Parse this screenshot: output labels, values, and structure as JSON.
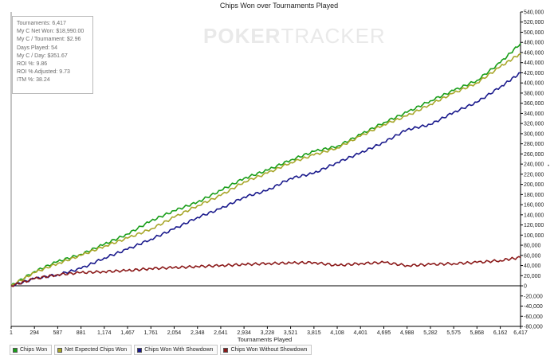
{
  "chart_data": {
    "type": "line",
    "title": "Chips Won over Tournaments Played",
    "xlabel": "Tournaments Played",
    "ylabel": "",
    "xlim": [
      1,
      6417
    ],
    "ylim": [
      -80000,
      540000
    ],
    "x_ticks": [
      "1",
      "294",
      "587",
      "881",
      "1,174",
      "1,467",
      "1,761",
      "2,054",
      "2,348",
      "2,641",
      "2,934",
      "3,228",
      "3,521",
      "3,815",
      "4,108",
      "4,401",
      "4,695",
      "4,988",
      "5,282",
      "5,575",
      "5,868",
      "6,162",
      "6,417"
    ],
    "y_ticks": [
      "540,000",
      "520,000",
      "500,000",
      "480,000",
      "460,000",
      "440,000",
      "420,000",
      "400,000",
      "380,000",
      "360,000",
      "340,000",
      "320,000",
      "300,000",
      "280,000",
      "260,000",
      "240,000",
      "220,000",
      "200,000",
      "180,000",
      "160,000",
      "140,000",
      "120,000",
      "100,000",
      "80,000",
      "60,000",
      "40,000",
      "20,000",
      "0",
      "-20,000",
      "-40,000",
      "-60,000",
      "-80,000"
    ],
    "legend_position": "bottom",
    "grid": false,
    "series": [
      {
        "name": "Chips Won",
        "color": "#1a9e1a",
        "x": [
          1,
          294,
          587,
          881,
          1174,
          1467,
          1761,
          2054,
          2348,
          2641,
          2934,
          3228,
          3521,
          3815,
          4108,
          4401,
          4695,
          4988,
          5282,
          5575,
          5868,
          6162,
          6417
        ],
        "y": [
          0,
          28000,
          48000,
          62000,
          82000,
          102000,
          128000,
          148000,
          165000,
          188000,
          212000,
          228000,
          248000,
          265000,
          275000,
          298000,
          322000,
          342000,
          365000,
          385000,
          405000,
          440000,
          478000
        ]
      },
      {
        "name": "Net Expected Chips Won",
        "color": "#a8a62a",
        "x": [
          1,
          294,
          587,
          881,
          1174,
          1467,
          1761,
          2054,
          2348,
          2641,
          2934,
          3228,
          3521,
          3815,
          4108,
          4401,
          4695,
          4988,
          5282,
          5575,
          5868,
          6162,
          6417
        ],
        "y": [
          0,
          26000,
          44000,
          60000,
          78000,
          94000,
          112000,
          135000,
          158000,
          178000,
          205000,
          222000,
          243000,
          258000,
          272000,
          295000,
          318000,
          335000,
          358000,
          380000,
          400000,
          432000,
          458000
        ]
      },
      {
        "name": "Chips Won With Showdown",
        "color": "#1a1a8c",
        "x": [
          1,
          294,
          587,
          881,
          1174,
          1467,
          1761,
          2054,
          2348,
          2641,
          2934,
          3228,
          3521,
          3815,
          4108,
          4401,
          4695,
          4988,
          5282,
          5575,
          5868,
          6162,
          6417
        ],
        "y": [
          0,
          14000,
          22000,
          34000,
          55000,
          72000,
          92000,
          112000,
          135000,
          152000,
          175000,
          188000,
          212000,
          222000,
          243000,
          262000,
          283000,
          308000,
          318000,
          342000,
          362000,
          392000,
          420000
        ]
      },
      {
        "name": "Chips Won Without Showdown",
        "color": "#8b1a1a",
        "x": [
          1,
          294,
          587,
          881,
          1174,
          1467,
          1761,
          2054,
          2348,
          2641,
          2934,
          3228,
          3521,
          3815,
          4108,
          4401,
          4695,
          4988,
          5282,
          5575,
          5868,
          6162,
          6417
        ],
        "y": [
          0,
          14000,
          22000,
          26000,
          28000,
          30000,
          34000,
          36000,
          38000,
          40000,
          42000,
          44000,
          45000,
          46000,
          40000,
          44000,
          46000,
          40000,
          42000,
          44000,
          46000,
          50000,
          56000
        ]
      }
    ]
  },
  "stats": [
    "Tournaments: 6,417",
    "My C Net Won: $18,990.00",
    "My C / Tournament: $2.96",
    "Days Played: 54",
    "My C / Day: $351.67",
    "ROI %: 9.86",
    "ROI % Adjusted: 9.73",
    "ITM %: 38.24"
  ],
  "watermark": {
    "strong": "POKER",
    "light": "TRACKER"
  },
  "side_marker": "•",
  "colors": {
    "axis": "#000000",
    "tick_text": "#222222",
    "background": "#ffffff"
  }
}
